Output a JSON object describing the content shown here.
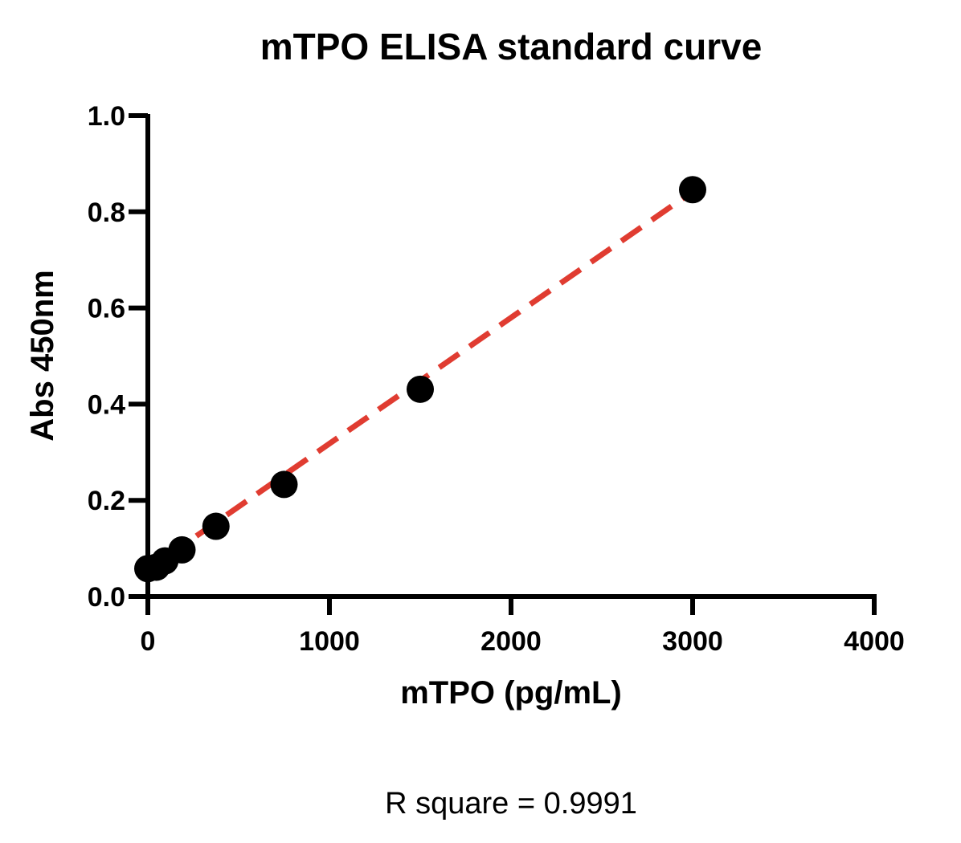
{
  "chart_data": {
    "type": "scatter",
    "title": "mTPO ELISA standard curve",
    "xlabel": "mTPO (pg/mL)",
    "ylabel": "Abs 450nm",
    "xlim": [
      0,
      4000
    ],
    "ylim": [
      0,
      1.0
    ],
    "x_ticks": [
      "0",
      "1000",
      "2000",
      "3000",
      "4000"
    ],
    "y_ticks": [
      "0.0",
      "0.2",
      "0.4",
      "0.6",
      "0.8",
      "1.0"
    ],
    "series": [
      {
        "type": "scatter",
        "color": "#000000",
        "points": [
          {
            "x": 0,
            "y": 0.058
          },
          {
            "x": 47,
            "y": 0.061
          },
          {
            "x": 94,
            "y": 0.074
          },
          {
            "x": 188,
            "y": 0.097
          },
          {
            "x": 375,
            "y": 0.146
          },
          {
            "x": 750,
            "y": 0.233
          },
          {
            "x": 1500,
            "y": 0.431
          },
          {
            "x": 3000,
            "y": 0.846
          }
        ]
      },
      {
        "type": "line",
        "style": "dashed",
        "color": "#e03c31",
        "points": [
          {
            "x": 100,
            "y": 0.082
          },
          {
            "x": 3000,
            "y": 0.842
          }
        ]
      }
    ],
    "annotation": "R square = 0.9991",
    "grid": false,
    "legend": "none"
  }
}
